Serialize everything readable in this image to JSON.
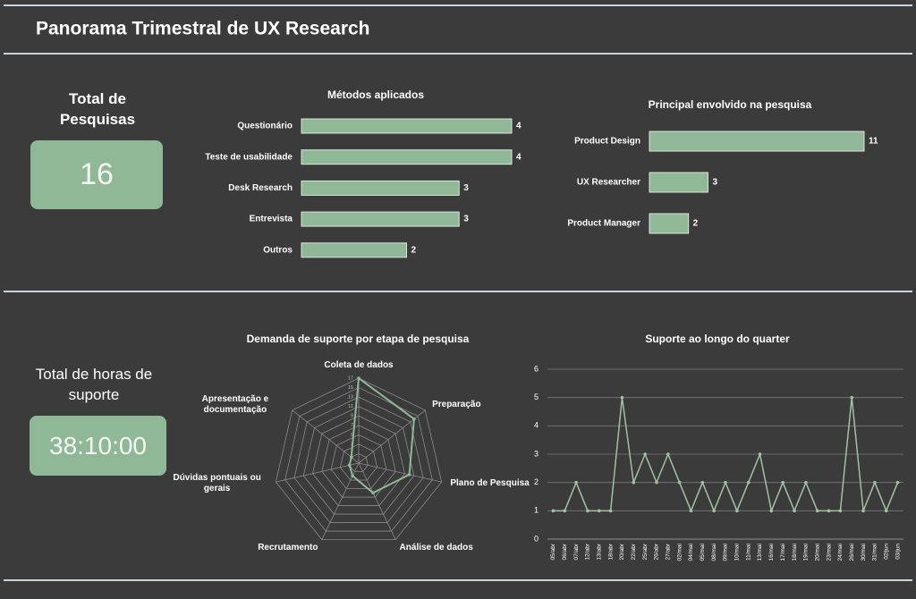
{
  "header": {
    "title": "Panorama Trimestral de UX Research"
  },
  "kpis": [
    {
      "label": "Total de Pesquisas",
      "value": "16"
    },
    {
      "label": "Total de horas de suporte",
      "value": "38:10:00"
    }
  ],
  "chart_data": [
    {
      "type": "hbar",
      "title": "Métodos aplicados",
      "color": "#8fb996",
      "categories": [
        "Questionário",
        "Teste de usabilidade",
        "Desk Research",
        "Entrevista",
        "Outros"
      ],
      "values": [
        4,
        4,
        3,
        3,
        2
      ]
    },
    {
      "type": "hbar",
      "title": "Principal envolvido na pesquisa",
      "color": "#8fb996",
      "categories": [
        "Product Design",
        "UX Researcher",
        "Product Manager"
      ],
      "values": [
        11,
        3,
        2
      ]
    },
    {
      "type": "radar",
      "title": "Demanda de suporte por etapa de pesquisa",
      "color": "#8fb996",
      "categories": [
        "Coleta de dados",
        "Preparação",
        "Plano de Pesquisa",
        "Análise de dados",
        "Recrutamento",
        "Dúvidas pontuais ou gerais",
        "Apresentação e documentação"
      ],
      "values": [
        17,
        14,
        10,
        6,
        2,
        1,
        1
      ],
      "ylim": [
        -1,
        17
      ],
      "yticks": [
        1,
        3,
        5,
        7,
        9,
        11,
        13,
        15,
        17
      ]
    },
    {
      "type": "line",
      "title": "Suporte ao longo do quarter",
      "color": "#9dc3a0",
      "grid": true,
      "categories": [
        "05/abr",
        "06/abr",
        "07/abr",
        "12/abr",
        "13/abr",
        "18/abr",
        "20/abr",
        "22/abr",
        "25/abr",
        "26/abr",
        "27/abr",
        "02/mai",
        "04/mai",
        "05/mai",
        "08/mai",
        "09/mai",
        "10/mai",
        "11/mai",
        "13/mai",
        "16/mai",
        "17/mai",
        "18/mai",
        "19/mai",
        "20/mai",
        "23/mai",
        "24/mai",
        "26/mai",
        "30/mai",
        "31/mai",
        "02/jun",
        "03/jun"
      ],
      "values": [
        1,
        1,
        2,
        1,
        1,
        1,
        5,
        2,
        3,
        2,
        3,
        2,
        1,
        2,
        1,
        2,
        1,
        2,
        3,
        1,
        2,
        1,
        2,
        1,
        1,
        1,
        5,
        1,
        2,
        1,
        2
      ],
      "ylim": [
        0,
        6
      ],
      "yticks": [
        0,
        1,
        2,
        3,
        4,
        5,
        6
      ]
    }
  ]
}
